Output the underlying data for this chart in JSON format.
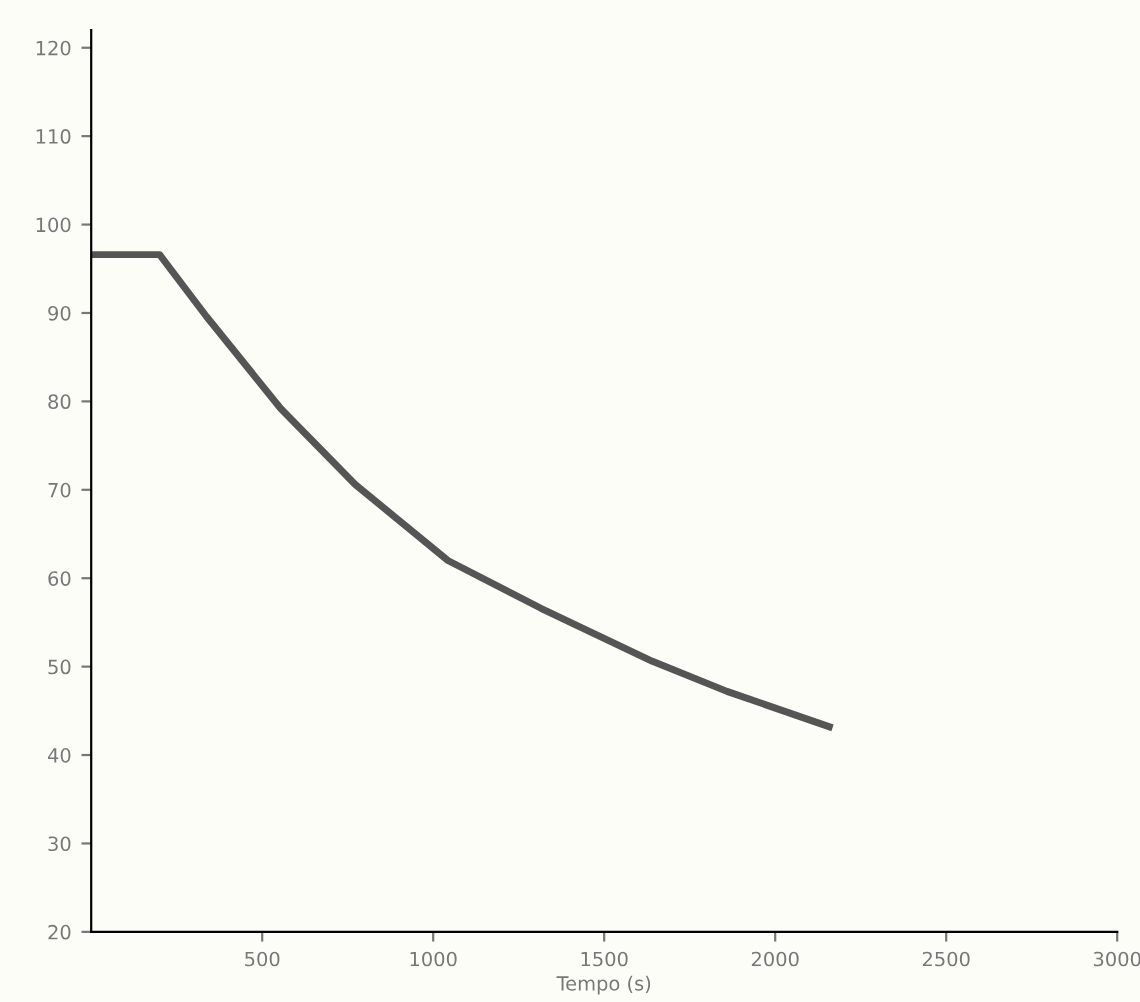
{
  "chart_data": {
    "type": "line",
    "xlabel": "Tempo (s)",
    "x": [
      0,
      200,
      337,
      554,
      772,
      1043,
      1315,
      1641,
      1859,
      2158
    ],
    "series": [
      {
        "color": "#555555",
        "values": [
          96.6,
          96.6,
          89.6,
          79.2,
          70.6,
          62,
          56.6,
          50.6,
          47.2,
          43.2
        ]
      }
    ],
    "xlim": [
      0,
      3000
    ],
    "xticks": [
      500,
      1000,
      1500,
      2000,
      2500,
      3000
    ],
    "ylim": [
      20,
      122
    ],
    "yticks": [
      20,
      30,
      40,
      50,
      60,
      70,
      80,
      90,
      100,
      110,
      120
    ],
    "grid": false,
    "legend": false,
    "marker": "none",
    "line_style": "solid"
  }
}
